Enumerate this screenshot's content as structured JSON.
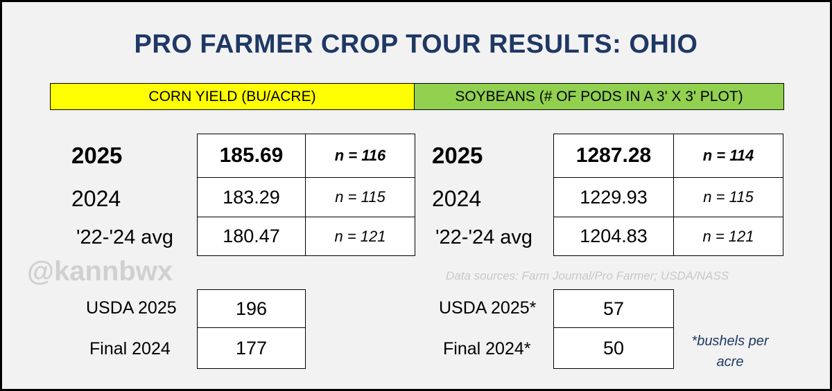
{
  "title": "PRO FARMER CROP TOUR RESULTS: OHIO",
  "headers": {
    "corn": "CORN YIELD (BU/ACRE)",
    "soy": "SOYBEANS (# OF PODS IN A 3' X 3' PLOT)"
  },
  "corn": {
    "rows": [
      {
        "label": "2025",
        "value": "185.69",
        "n": "n = 116"
      },
      {
        "label": "2024",
        "value": "183.29",
        "n": "n = 115"
      },
      {
        "label": "'22-'24 avg",
        "value": "180.47",
        "n": "n = 121"
      }
    ],
    "usda": {
      "label": "USDA 2025",
      "value": "196"
    },
    "final": {
      "label": "Final 2024",
      "value": "177"
    }
  },
  "soy": {
    "rows": [
      {
        "label": "2025",
        "value": "1287.28",
        "n": "n =  114"
      },
      {
        "label": "2024",
        "value": "1229.93",
        "n": "n =  115"
      },
      {
        "label": "'22-'24 avg",
        "value": "1204.83",
        "n": "n = 121"
      }
    ],
    "usda": {
      "label": "USDA 2025*",
      "value": "57"
    },
    "final": {
      "label": "Final 2024*",
      "value": "50"
    }
  },
  "watermark": "@kannbwx",
  "source": "Data sources: Farm Journal/Pro Farmer; USDA/NASS",
  "footnote": "*bushels per acre",
  "colors": {
    "title": "#1f3864",
    "corn_band": "#ffff00",
    "soy_band": "#92d050",
    "background": "#f2f2f2"
  }
}
